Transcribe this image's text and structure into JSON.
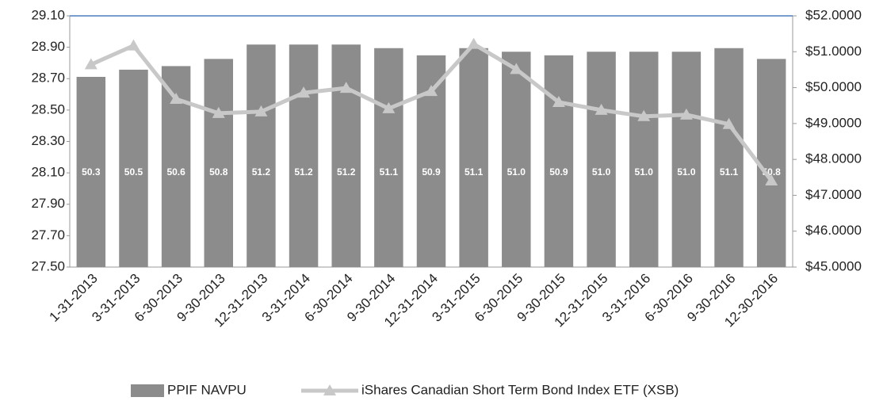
{
  "chart_data": {
    "type": "combo",
    "categories": [
      "1-31-2013",
      "3-31-2013",
      "6-30-2013",
      "9-30-2013",
      "12-31-2013",
      "3-31-2014",
      "6-30-2014",
      "9-30-2014",
      "12-31-2014",
      "3-31-2015",
      "6-30-2015",
      "9-30-2015",
      "12-31-2015",
      "3-31-2016",
      "6-30-2016",
      "9-30-2016",
      "12-30-2016"
    ],
    "series": [
      {
        "name": "PPIF NAVPU",
        "type": "bar",
        "axis": "y2",
        "color": "#8c8c8c",
        "values": [
          50.3,
          50.5,
          50.6,
          50.8,
          51.2,
          51.2,
          51.2,
          51.1,
          50.9,
          51.1,
          51.0,
          50.9,
          51.0,
          51.0,
          51.0,
          51.1,
          50.8
        ],
        "value_labels": [
          "50.3",
          "50.5",
          "50.6",
          "50.8",
          "51.2",
          "51.2",
          "51.2",
          "51.1",
          "50.9",
          "51.1",
          "51.0",
          "50.9",
          "51.0",
          "51.0",
          "51.0",
          "51.1",
          "50.8"
        ]
      },
      {
        "name": "iShares Canadian Short Term Bond Index ETF (XSB)",
        "type": "line",
        "color": "#c8c8c8",
        "values": [
          28.79,
          28.91,
          28.57,
          28.48,
          28.49,
          28.61,
          28.64,
          28.51,
          28.62,
          28.92,
          28.76,
          28.55,
          28.5,
          28.46,
          28.47,
          28.41,
          28.05
        ]
      }
    ],
    "ylim": [
      27.5,
      29.1
    ],
    "yticks": [
      {
        "value": 27.5,
        "label": "27.50"
      },
      {
        "value": 27.7,
        "label": "27.70"
      },
      {
        "value": 27.9,
        "label": "27.90"
      },
      {
        "value": 28.1,
        "label": "28.10"
      },
      {
        "value": 28.3,
        "label": "28.30"
      },
      {
        "value": 28.5,
        "label": "28.50"
      },
      {
        "value": 28.7,
        "label": "28.70"
      },
      {
        "value": 28.9,
        "label": "28.90"
      },
      {
        "value": 29.1,
        "label": "29.10"
      }
    ],
    "y2lim": [
      45,
      52
    ],
    "y2ticks": [
      {
        "value": 45,
        "label": "$45.0000"
      },
      {
        "value": 46,
        "label": "$46.0000"
      },
      {
        "value": 47,
        "label": "$47.0000"
      },
      {
        "value": 48,
        "label": "$48.0000"
      },
      {
        "value": 49,
        "label": "$49.0000"
      },
      {
        "value": 50,
        "label": "$50.0000"
      },
      {
        "value": 51,
        "label": "$51.0000"
      },
      {
        "value": 52,
        "label": "$52.0000"
      }
    ],
    "legend": "bottom"
  }
}
